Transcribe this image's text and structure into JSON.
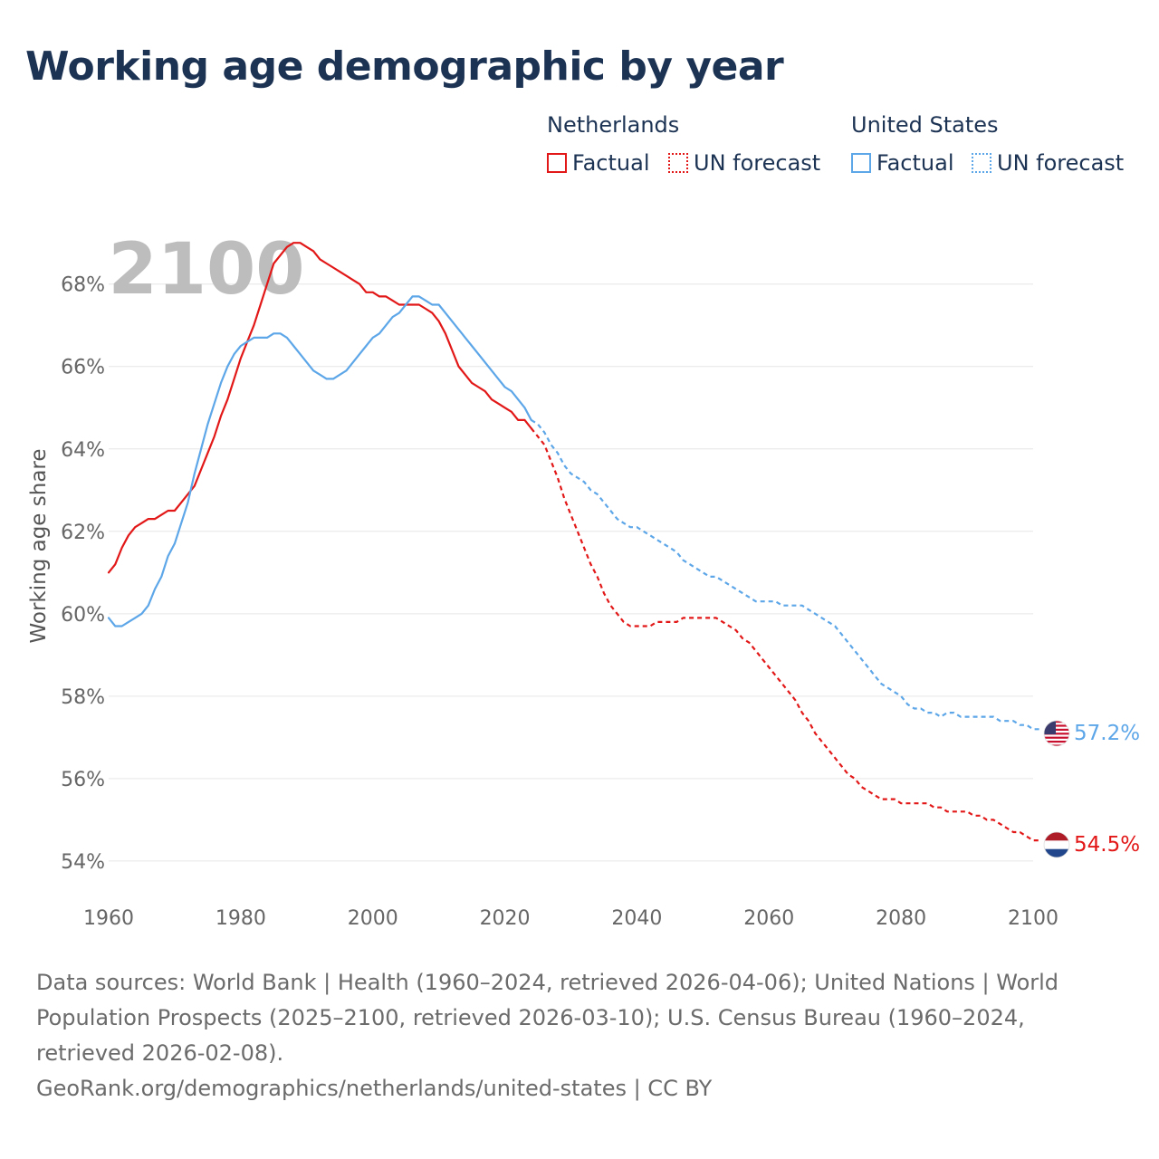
{
  "title": "Working age demographic by year",
  "legend": {
    "netherlands": {
      "name": "Netherlands",
      "factual": "Factual",
      "forecast": "UN forecast",
      "color": "#e21717"
    },
    "united_states": {
      "name": "United States",
      "factual": "Factual",
      "forecast": "UN forecast",
      "color": "#5da6e8"
    }
  },
  "chart_data": {
    "type": "line",
    "title": "Working age demographic by year",
    "ylabel": "Working age share",
    "xlabel": "",
    "xlim": [
      1960,
      2100
    ],
    "ylim": [
      53.8,
      69.4
    ],
    "x_ticks": [
      1960,
      1980,
      2000,
      2020,
      2040,
      2060,
      2080,
      2100
    ],
    "x_tick_labels": [
      "1960",
      "1980",
      "2000",
      "2020",
      "2040",
      "2060",
      "2080",
      "2100"
    ],
    "y_ticks": [
      54,
      56,
      58,
      60,
      62,
      64,
      66,
      68
    ],
    "y_tick_labels": [
      "54%",
      "56%",
      "58%",
      "60%",
      "62%",
      "64%",
      "66%",
      "68%"
    ],
    "watermark_year": "2100",
    "series": [
      {
        "name": "Netherlands",
        "color": "#e21717",
        "factual_end_year": 2024,
        "end_label": "54.5%",
        "points": [
          [
            1960,
            61.0
          ],
          [
            1961,
            61.2
          ],
          [
            1962,
            61.6
          ],
          [
            1963,
            61.9
          ],
          [
            1964,
            62.1
          ],
          [
            1965,
            62.2
          ],
          [
            1966,
            62.3
          ],
          [
            1967,
            62.3
          ],
          [
            1968,
            62.4
          ],
          [
            1969,
            62.5
          ],
          [
            1970,
            62.5
          ],
          [
            1971,
            62.7
          ],
          [
            1972,
            62.9
          ],
          [
            1973,
            63.1
          ],
          [
            1974,
            63.5
          ],
          [
            1975,
            63.9
          ],
          [
            1976,
            64.3
          ],
          [
            1977,
            64.8
          ],
          [
            1978,
            65.2
          ],
          [
            1979,
            65.7
          ],
          [
            1980,
            66.2
          ],
          [
            1981,
            66.6
          ],
          [
            1982,
            67.0
          ],
          [
            1983,
            67.5
          ],
          [
            1984,
            68.0
          ],
          [
            1985,
            68.5
          ],
          [
            1986,
            68.7
          ],
          [
            1987,
            68.9
          ],
          [
            1988,
            69.0
          ],
          [
            1989,
            69.0
          ],
          [
            1990,
            68.9
          ],
          [
            1991,
            68.8
          ],
          [
            1992,
            68.6
          ],
          [
            1993,
            68.5
          ],
          [
            1994,
            68.4
          ],
          [
            1995,
            68.3
          ],
          [
            1996,
            68.2
          ],
          [
            1997,
            68.1
          ],
          [
            1998,
            68.0
          ],
          [
            1999,
            67.8
          ],
          [
            2000,
            67.8
          ],
          [
            2001,
            67.7
          ],
          [
            2002,
            67.7
          ],
          [
            2003,
            67.6
          ],
          [
            2004,
            67.5
          ],
          [
            2005,
            67.5
          ],
          [
            2006,
            67.5
          ],
          [
            2007,
            67.5
          ],
          [
            2008,
            67.4
          ],
          [
            2009,
            67.3
          ],
          [
            2010,
            67.1
          ],
          [
            2011,
            66.8
          ],
          [
            2012,
            66.4
          ],
          [
            2013,
            66.0
          ],
          [
            2014,
            65.8
          ],
          [
            2015,
            65.6
          ],
          [
            2016,
            65.5
          ],
          [
            2017,
            65.4
          ],
          [
            2018,
            65.2
          ],
          [
            2019,
            65.1
          ],
          [
            2020,
            65.0
          ],
          [
            2021,
            64.9
          ],
          [
            2022,
            64.7
          ],
          [
            2023,
            64.7
          ],
          [
            2024,
            64.5
          ],
          [
            2025,
            64.3
          ],
          [
            2026,
            64.1
          ],
          [
            2027,
            63.7
          ],
          [
            2028,
            63.3
          ],
          [
            2029,
            62.8
          ],
          [
            2030,
            62.4
          ],
          [
            2031,
            62.0
          ],
          [
            2032,
            61.6
          ],
          [
            2033,
            61.2
          ],
          [
            2034,
            60.9
          ],
          [
            2035,
            60.5
          ],
          [
            2036,
            60.2
          ],
          [
            2037,
            60.0
          ],
          [
            2038,
            59.8
          ],
          [
            2039,
            59.7
          ],
          [
            2040,
            59.7
          ],
          [
            2041,
            59.7
          ],
          [
            2042,
            59.7
          ],
          [
            2043,
            59.8
          ],
          [
            2044,
            59.8
          ],
          [
            2045,
            59.8
          ],
          [
            2046,
            59.8
          ],
          [
            2047,
            59.9
          ],
          [
            2048,
            59.9
          ],
          [
            2049,
            59.9
          ],
          [
            2050,
            59.9
          ],
          [
            2051,
            59.9
          ],
          [
            2052,
            59.9
          ],
          [
            2053,
            59.8
          ],
          [
            2054,
            59.7
          ],
          [
            2055,
            59.6
          ],
          [
            2056,
            59.4
          ],
          [
            2057,
            59.3
          ],
          [
            2058,
            59.1
          ],
          [
            2059,
            58.9
          ],
          [
            2060,
            58.7
          ],
          [
            2061,
            58.5
          ],
          [
            2062,
            58.3
          ],
          [
            2063,
            58.1
          ],
          [
            2064,
            57.9
          ],
          [
            2065,
            57.6
          ],
          [
            2066,
            57.4
          ],
          [
            2067,
            57.1
          ],
          [
            2068,
            56.9
          ],
          [
            2069,
            56.7
          ],
          [
            2070,
            56.5
          ],
          [
            2071,
            56.3
          ],
          [
            2072,
            56.1
          ],
          [
            2073,
            56.0
          ],
          [
            2074,
            55.8
          ],
          [
            2075,
            55.7
          ],
          [
            2076,
            55.6
          ],
          [
            2077,
            55.5
          ],
          [
            2078,
            55.5
          ],
          [
            2079,
            55.5
          ],
          [
            2080,
            55.4
          ],
          [
            2081,
            55.4
          ],
          [
            2082,
            55.4
          ],
          [
            2083,
            55.4
          ],
          [
            2084,
            55.4
          ],
          [
            2085,
            55.3
          ],
          [
            2086,
            55.3
          ],
          [
            2087,
            55.2
          ],
          [
            2088,
            55.2
          ],
          [
            2089,
            55.2
          ],
          [
            2090,
            55.2
          ],
          [
            2091,
            55.1
          ],
          [
            2092,
            55.1
          ],
          [
            2093,
            55.0
          ],
          [
            2094,
            55.0
          ],
          [
            2095,
            54.9
          ],
          [
            2096,
            54.8
          ],
          [
            2097,
            54.7
          ],
          [
            2098,
            54.7
          ],
          [
            2099,
            54.6
          ],
          [
            2100,
            54.5
          ],
          [
            2101,
            54.5
          ]
        ]
      },
      {
        "name": "United States",
        "color": "#5da6e8",
        "factual_end_year": 2024,
        "end_label": "57.2%",
        "points": [
          [
            1960,
            59.9
          ],
          [
            1961,
            59.7
          ],
          [
            1962,
            59.7
          ],
          [
            1963,
            59.8
          ],
          [
            1964,
            59.9
          ],
          [
            1965,
            60.0
          ],
          [
            1966,
            60.2
          ],
          [
            1967,
            60.6
          ],
          [
            1968,
            60.9
          ],
          [
            1969,
            61.4
          ],
          [
            1970,
            61.7
          ],
          [
            1971,
            62.2
          ],
          [
            1972,
            62.7
          ],
          [
            1973,
            63.4
          ],
          [
            1974,
            64.0
          ],
          [
            1975,
            64.6
          ],
          [
            1976,
            65.1
          ],
          [
            1977,
            65.6
          ],
          [
            1978,
            66.0
          ],
          [
            1979,
            66.3
          ],
          [
            1980,
            66.5
          ],
          [
            1981,
            66.6
          ],
          [
            1982,
            66.7
          ],
          [
            1983,
            66.7
          ],
          [
            1984,
            66.7
          ],
          [
            1985,
            66.8
          ],
          [
            1986,
            66.8
          ],
          [
            1987,
            66.7
          ],
          [
            1988,
            66.5
          ],
          [
            1989,
            66.3
          ],
          [
            1990,
            66.1
          ],
          [
            1991,
            65.9
          ],
          [
            1992,
            65.8
          ],
          [
            1993,
            65.7
          ],
          [
            1994,
            65.7
          ],
          [
            1995,
            65.8
          ],
          [
            1996,
            65.9
          ],
          [
            1997,
            66.1
          ],
          [
            1998,
            66.3
          ],
          [
            1999,
            66.5
          ],
          [
            2000,
            66.7
          ],
          [
            2001,
            66.8
          ],
          [
            2002,
            67.0
          ],
          [
            2003,
            67.2
          ],
          [
            2004,
            67.3
          ],
          [
            2005,
            67.5
          ],
          [
            2006,
            67.7
          ],
          [
            2007,
            67.7
          ],
          [
            2008,
            67.6
          ],
          [
            2009,
            67.5
          ],
          [
            2010,
            67.5
          ],
          [
            2011,
            67.3
          ],
          [
            2012,
            67.1
          ],
          [
            2013,
            66.9
          ],
          [
            2014,
            66.7
          ],
          [
            2015,
            66.5
          ],
          [
            2016,
            66.3
          ],
          [
            2017,
            66.1
          ],
          [
            2018,
            65.9
          ],
          [
            2019,
            65.7
          ],
          [
            2020,
            65.5
          ],
          [
            2021,
            65.4
          ],
          [
            2022,
            65.2
          ],
          [
            2023,
            65.0
          ],
          [
            2024,
            64.7
          ],
          [
            2025,
            64.6
          ],
          [
            2026,
            64.4
          ],
          [
            2027,
            64.1
          ],
          [
            2028,
            63.9
          ],
          [
            2029,
            63.6
          ],
          [
            2030,
            63.4
          ],
          [
            2031,
            63.3
          ],
          [
            2032,
            63.2
          ],
          [
            2033,
            63.0
          ],
          [
            2034,
            62.9
          ],
          [
            2035,
            62.7
          ],
          [
            2036,
            62.5
          ],
          [
            2037,
            62.3
          ],
          [
            2038,
            62.2
          ],
          [
            2039,
            62.1
          ],
          [
            2040,
            62.1
          ],
          [
            2041,
            62.0
          ],
          [
            2042,
            61.9
          ],
          [
            2043,
            61.8
          ],
          [
            2044,
            61.7
          ],
          [
            2045,
            61.6
          ],
          [
            2046,
            61.5
          ],
          [
            2047,
            61.3
          ],
          [
            2048,
            61.2
          ],
          [
            2049,
            61.1
          ],
          [
            2050,
            61.0
          ],
          [
            2051,
            60.9
          ],
          [
            2052,
            60.9
          ],
          [
            2053,
            60.8
          ],
          [
            2054,
            60.7
          ],
          [
            2055,
            60.6
          ],
          [
            2056,
            60.5
          ],
          [
            2057,
            60.4
          ],
          [
            2058,
            60.3
          ],
          [
            2059,
            60.3
          ],
          [
            2060,
            60.3
          ],
          [
            2061,
            60.3
          ],
          [
            2062,
            60.2
          ],
          [
            2063,
            60.2
          ],
          [
            2064,
            60.2
          ],
          [
            2065,
            60.2
          ],
          [
            2066,
            60.1
          ],
          [
            2067,
            60.0
          ],
          [
            2068,
            59.9
          ],
          [
            2069,
            59.8
          ],
          [
            2070,
            59.7
          ],
          [
            2071,
            59.5
          ],
          [
            2072,
            59.3
          ],
          [
            2073,
            59.1
          ],
          [
            2074,
            58.9
          ],
          [
            2075,
            58.7
          ],
          [
            2076,
            58.5
          ],
          [
            2077,
            58.3
          ],
          [
            2078,
            58.2
          ],
          [
            2079,
            58.1
          ],
          [
            2080,
            58.0
          ],
          [
            2081,
            57.8
          ],
          [
            2082,
            57.7
          ],
          [
            2083,
            57.7
          ],
          [
            2084,
            57.6
          ],
          [
            2085,
            57.6
          ],
          [
            2086,
            57.5
          ],
          [
            2087,
            57.6
          ],
          [
            2088,
            57.6
          ],
          [
            2089,
            57.5
          ],
          [
            2090,
            57.5
          ],
          [
            2091,
            57.5
          ],
          [
            2092,
            57.5
          ],
          [
            2093,
            57.5
          ],
          [
            2094,
            57.5
          ],
          [
            2095,
            57.4
          ],
          [
            2096,
            57.4
          ],
          [
            2097,
            57.4
          ],
          [
            2098,
            57.3
          ],
          [
            2099,
            57.3
          ],
          [
            2100,
            57.2
          ],
          [
            2101,
            57.2
          ]
        ]
      }
    ]
  },
  "footer": {
    "sources": "Data sources: World Bank | Health (1960–2024, retrieved 2026-04-06); United Nations | World Population Prospects (2025–2100, retrieved 2026-03-10); U.S. Census Bureau (1960–2024, retrieved 2026-02-08).",
    "credit": "GeoRank.org/demographics/netherlands/united-states | CC BY"
  }
}
